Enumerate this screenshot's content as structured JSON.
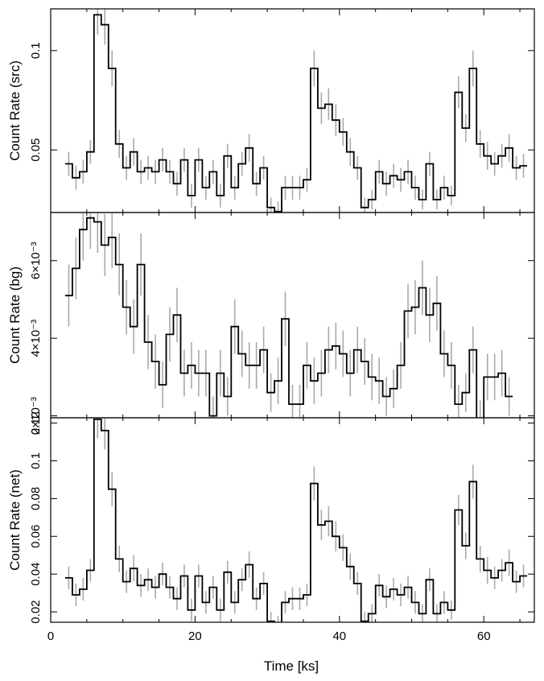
{
  "chart_data": {
    "type": "line",
    "style": "step-with-error-bars",
    "xlabel": "Time [ks]",
    "xlim": [
      0,
      67
    ],
    "xticks": [
      0,
      20,
      40,
      60
    ],
    "bin_width_ks": 1,
    "x": [
      2.5,
      3.5,
      4.5,
      5.5,
      6.5,
      7.5,
      8.5,
      9.5,
      10.5,
      11.5,
      12.5,
      13.5,
      14.5,
      15.5,
      16.5,
      17.5,
      18.5,
      19.5,
      20.5,
      21.5,
      22.5,
      23.5,
      24.5,
      25.5,
      26.5,
      27.5,
      28.5,
      29.5,
      30.5,
      31.5,
      32.5,
      33.5,
      34.5,
      35.5,
      36.5,
      37.5,
      38.5,
      39.5,
      40.5,
      41.5,
      42.5,
      43.5,
      44.5,
      45.5,
      46.5,
      47.5,
      48.5,
      49.5,
      50.5,
      51.5,
      52.5,
      53.5,
      54.5,
      55.5,
      56.5,
      57.5,
      58.5,
      59.5,
      60.5,
      61.5,
      62.5,
      63.5,
      64.5,
      65.5
    ],
    "panels": [
      {
        "ylabel": "Count Rate (src)",
        "ylim": [
          0.0185,
          0.121
        ],
        "yticks": [
          {
            "value": 0.05,
            "label": "0.05"
          },
          {
            "value": 0.1,
            "label": "0.1"
          }
        ],
        "values": [
          0.043,
          0.036,
          0.039,
          0.049,
          0.118,
          0.113,
          0.091,
          0.053,
          0.041,
          0.049,
          0.039,
          0.041,
          0.039,
          0.045,
          0.039,
          0.033,
          0.045,
          0.027,
          0.045,
          0.031,
          0.039,
          0.027,
          0.047,
          0.031,
          0.043,
          0.051,
          0.033,
          0.041,
          0.021,
          0.019,
          0.031,
          0.031,
          0.031,
          0.035,
          0.091,
          0.071,
          0.073,
          0.065,
          0.059,
          0.049,
          0.041,
          0.021,
          0.025,
          0.039,
          0.033,
          0.037,
          0.035,
          0.039,
          0.031,
          0.025,
          0.043,
          0.025,
          0.031,
          0.027,
          0.079,
          0.061,
          0.091,
          0.053,
          0.047,
          0.043,
          0.047,
          0.051,
          0.041,
          0.042
        ],
        "errors": [
          0.006,
          0.006,
          0.006,
          0.006,
          0.01,
          0.01,
          0.009,
          0.007,
          0.006,
          0.007,
          0.006,
          0.006,
          0.006,
          0.006,
          0.006,
          0.006,
          0.006,
          0.006,
          0.006,
          0.006,
          0.006,
          0.006,
          0.006,
          0.006,
          0.006,
          0.007,
          0.006,
          0.006,
          0.005,
          0.005,
          0.006,
          0.006,
          0.006,
          0.006,
          0.009,
          0.008,
          0.008,
          0.008,
          0.007,
          0.007,
          0.006,
          0.005,
          0.005,
          0.006,
          0.006,
          0.006,
          0.006,
          0.006,
          0.006,
          0.005,
          0.006,
          0.005,
          0.006,
          0.005,
          0.008,
          0.007,
          0.009,
          0.007,
          0.007,
          0.006,
          0.006,
          0.007,
          0.006,
          0.006
        ]
      },
      {
        "ylabel": "Count Rate (bg)",
        "ylim": [
          0.00195,
          0.00724
        ],
        "yticks": [
          {
            "value": 0.002,
            "label": "2×10⁻³"
          },
          {
            "value": 0.004,
            "label": "4×10⁻³"
          },
          {
            "value": 0.006,
            "label": "6×10⁻³"
          }
        ],
        "values": [
          0.0051,
          0.0058,
          0.0068,
          0.0071,
          0.007,
          0.0064,
          0.0066,
          0.0059,
          0.0048,
          0.0043,
          0.0059,
          0.0039,
          0.0034,
          0.0028,
          0.0041,
          0.0046,
          0.0031,
          0.0033,
          0.0031,
          0.0031,
          0.002,
          0.0031,
          0.0025,
          0.0043,
          0.0036,
          0.0033,
          0.0033,
          0.0037,
          0.0026,
          0.0029,
          0.0045,
          0.0023,
          0.0023,
          0.0033,
          0.0029,
          0.0031,
          0.0037,
          0.0038,
          0.0036,
          0.0031,
          0.0037,
          0.0034,
          0.003,
          0.0029,
          0.0025,
          0.0027,
          0.0033,
          0.0047,
          0.0048,
          0.0053,
          0.0046,
          0.0049,
          0.0036,
          0.0033,
          0.0023,
          0.0026,
          0.0037,
          0.0019,
          0.003,
          0.003,
          0.0031,
          0.0025
        ],
        "x_start_index": 0,
        "errors": [
          0.0008,
          0.0008,
          0.0008,
          0.0008,
          0.0008,
          0.0008,
          0.0008,
          0.0008,
          0.0007,
          0.0007,
          0.0008,
          0.0007,
          0.0007,
          0.0006,
          0.0007,
          0.0007,
          0.0006,
          0.0006,
          0.0006,
          0.0006,
          0.0005,
          0.0006,
          0.0005,
          0.0007,
          0.0006,
          0.0006,
          0.0006,
          0.0006,
          0.0005,
          0.0006,
          0.0007,
          0.0005,
          0.0005,
          0.0006,
          0.0006,
          0.0006,
          0.0006,
          0.0006,
          0.0006,
          0.0006,
          0.0006,
          0.0006,
          0.0006,
          0.0006,
          0.0005,
          0.0005,
          0.0006,
          0.0007,
          0.0007,
          0.0007,
          0.0007,
          0.0007,
          0.0006,
          0.0006,
          0.0005,
          0.0005,
          0.0006,
          0.0005,
          0.0006,
          0.0006,
          0.0006,
          0.0005
        ]
      },
      {
        "ylabel": "Count Rate (net)",
        "ylim": [
          0.0145,
          0.1228
        ],
        "yticks": [
          {
            "value": 0.02,
            "label": "0.02"
          },
          {
            "value": 0.04,
            "label": "0.04"
          },
          {
            "value": 0.06,
            "label": "0.06"
          },
          {
            "value": 0.08,
            "label": "0.08"
          },
          {
            "value": 0.1,
            "label": "0.1"
          },
          {
            "value": 0.12,
            "label": "0.12"
          }
        ],
        "values": [
          0.038,
          0.029,
          0.032,
          0.042,
          0.122,
          0.116,
          0.085,
          0.048,
          0.036,
          0.043,
          0.034,
          0.037,
          0.033,
          0.04,
          0.033,
          0.027,
          0.039,
          0.021,
          0.039,
          0.025,
          0.033,
          0.021,
          0.041,
          0.025,
          0.037,
          0.045,
          0.027,
          0.035,
          0.015,
          0.013,
          0.025,
          0.027,
          0.027,
          0.029,
          0.088,
          0.066,
          0.068,
          0.06,
          0.054,
          0.044,
          0.035,
          0.015,
          0.019,
          0.034,
          0.028,
          0.032,
          0.029,
          0.033,
          0.025,
          0.019,
          0.037,
          0.019,
          0.025,
          0.021,
          0.074,
          0.055,
          0.089,
          0.048,
          0.042,
          0.038,
          0.042,
          0.046,
          0.036,
          0.039
        ],
        "errors": [
          0.006,
          0.006,
          0.006,
          0.006,
          0.01,
          0.01,
          0.009,
          0.007,
          0.006,
          0.007,
          0.006,
          0.006,
          0.006,
          0.006,
          0.006,
          0.006,
          0.006,
          0.006,
          0.006,
          0.006,
          0.006,
          0.006,
          0.006,
          0.006,
          0.006,
          0.007,
          0.006,
          0.006,
          0.005,
          0.005,
          0.006,
          0.006,
          0.006,
          0.006,
          0.009,
          0.008,
          0.008,
          0.008,
          0.007,
          0.007,
          0.006,
          0.005,
          0.005,
          0.006,
          0.006,
          0.006,
          0.006,
          0.006,
          0.006,
          0.005,
          0.006,
          0.005,
          0.006,
          0.005,
          0.008,
          0.007,
          0.009,
          0.007,
          0.007,
          0.006,
          0.006,
          0.007,
          0.006,
          0.006
        ]
      }
    ],
    "colors": {
      "line": "#000000",
      "error_bar": "#aaaaaa",
      "frame": "#000000"
    },
    "grid": false,
    "legend": "none"
  }
}
